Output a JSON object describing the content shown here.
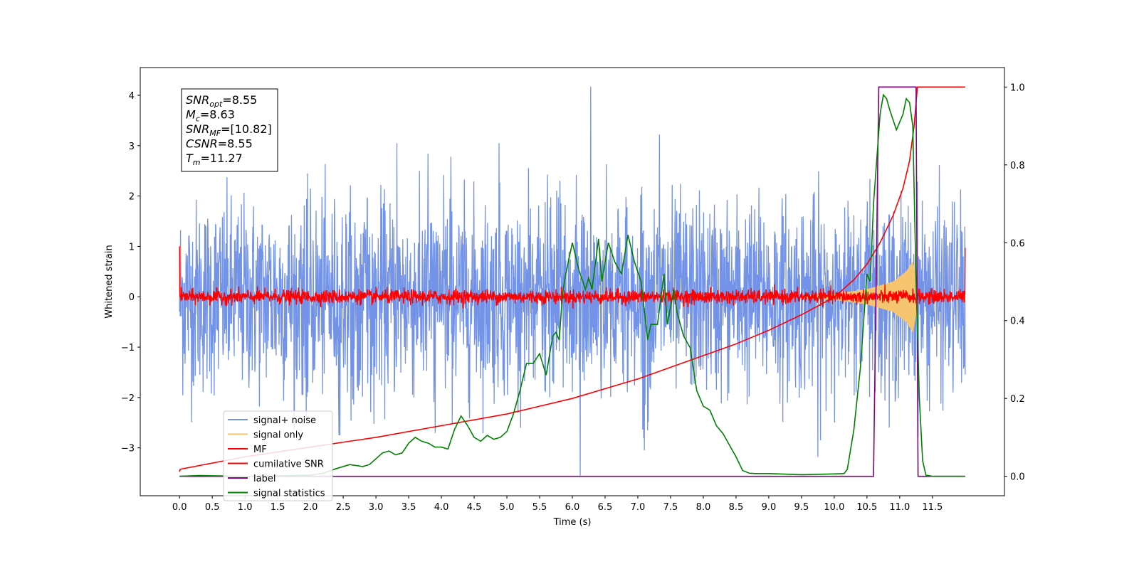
{
  "chart_data": {
    "type": "line",
    "xlabel": "Time (s)",
    "ylabel": "Whitened strain",
    "xlim": [
      -0.6,
      12.6
    ],
    "ylim": [
      -3.95,
      4.55
    ],
    "y2lim": [
      -0.05,
      1.05
    ],
    "xticks": [
      "0.0",
      "0.5",
      "1.0",
      "1.5",
      "2.0",
      "2.5",
      "3.0",
      "3.5",
      "4.0",
      "4.5",
      "5.0",
      "5.5",
      "6.0",
      "6.5",
      "7.0",
      "7.5",
      "8.0",
      "8.5",
      "9.0",
      "9.5",
      "10.0",
      "10.5",
      "11.0",
      "11.5"
    ],
    "yticks": [
      "−3",
      "−2",
      "−1",
      "0",
      "1",
      "2",
      "3",
      "4"
    ],
    "y2ticks": [
      "0.0",
      "0.2",
      "0.4",
      "0.6",
      "0.8",
      "1.0"
    ],
    "annotation": {
      "lines": [
        {
          "main": "SNR",
          "sub": "opt",
          "value": "=8.55"
        },
        {
          "main": "M",
          "sub": "c",
          "value": "=8.63"
        },
        {
          "main": "SNR",
          "sub": "MF",
          "value": "=[10.82]"
        },
        {
          "main": "CSNR",
          "sub": "",
          "value": "=8.55"
        },
        {
          "main": "T",
          "sub": "m",
          "value": "=11.27"
        }
      ]
    },
    "legend": {
      "placement": "lower-left",
      "entries": [
        {
          "label": "signal+ noise",
          "color": "#7393e8"
        },
        {
          "label": "signal only",
          "color": "#f5c56f"
        },
        {
          "label": "MF",
          "color": "#ff0000"
        },
        {
          "label": "cumilative SNR",
          "color": "#ff0000"
        },
        {
          "label": "label",
          "color": "#800080"
        },
        {
          "label": "signal statistics",
          "color": "#008000"
        }
      ]
    },
    "series": [
      {
        "name": "signal+ noise",
        "axis": "left",
        "color": "#7393e8",
        "kind": "noise",
        "x_range": [
          0,
          12.0
        ],
        "amplitude": 2.0,
        "spikes": [
          {
            "x": 6.28,
            "y": 4.17
          },
          {
            "x": 6.12,
            "y": -3.55
          },
          {
            "x": 3.32,
            "y": 3.05
          },
          {
            "x": 4.88,
            "y": 3.05
          },
          {
            "x": 7.33,
            "y": 3.22
          },
          {
            "x": 7.1,
            "y": -3.05
          },
          {
            "x": 9.75,
            "y": -3.18
          },
          {
            "x": 2.45,
            "y": -2.75
          }
        ]
      },
      {
        "name": "signal only",
        "axis": "left",
        "color": "#f5c56f",
        "kind": "chirp",
        "x_range": [
          9.5,
          11.27
        ],
        "envelope": [
          [
            9.5,
            0.02
          ],
          [
            10.0,
            0.06
          ],
          [
            10.5,
            0.15
          ],
          [
            10.9,
            0.3
          ],
          [
            11.1,
            0.5
          ],
          [
            11.2,
            0.7
          ],
          [
            11.27,
            0.2
          ]
        ]
      },
      {
        "name": "MF",
        "axis": "left",
        "color": "#ff0000",
        "kind": "noise",
        "x_range": [
          0,
          12.0
        ],
        "amplitude": 0.12,
        "edges": [
          {
            "x": 0.0,
            "y": 1.0
          },
          {
            "x": 12.0,
            "y": 0.97
          }
        ]
      },
      {
        "name": "cumilative SNR",
        "axis": "right",
        "color": "#ff0000",
        "kind": "line",
        "points": [
          [
            0.0,
            0.012
          ],
          [
            0.01,
            0.018
          ],
          [
            1.0,
            0.05
          ],
          [
            2.0,
            0.075
          ],
          [
            3.0,
            0.1
          ],
          [
            4.0,
            0.13
          ],
          [
            5.0,
            0.16
          ],
          [
            6.0,
            0.2
          ],
          [
            7.0,
            0.25
          ],
          [
            8.0,
            0.31
          ],
          [
            8.5,
            0.34
          ],
          [
            9.0,
            0.375
          ],
          [
            9.5,
            0.415
          ],
          [
            10.0,
            0.46
          ],
          [
            10.3,
            0.505
          ],
          [
            10.5,
            0.545
          ],
          [
            10.7,
            0.6
          ],
          [
            10.9,
            0.67
          ],
          [
            11.05,
            0.74
          ],
          [
            11.15,
            0.81
          ],
          [
            11.22,
            0.9
          ],
          [
            11.27,
            1.0
          ],
          [
            12.0,
            1.0
          ]
        ]
      },
      {
        "name": "label",
        "axis": "right",
        "color": "#800080",
        "kind": "line",
        "points": [
          [
            0.0,
            0.0
          ],
          [
            10.6,
            0.0
          ],
          [
            10.68,
            1.0
          ],
          [
            11.25,
            1.0
          ],
          [
            11.28,
            0.0
          ],
          [
            12.0,
            0.0
          ]
        ]
      },
      {
        "name": "signal statistics",
        "axis": "right",
        "color": "#008000",
        "kind": "line",
        "points": [
          [
            0.0,
            0.0
          ],
          [
            0.3,
            0.002
          ],
          [
            0.6,
            0.001
          ],
          [
            1.0,
            0.0
          ],
          [
            1.5,
            0.001
          ],
          [
            2.0,
            0.003
          ],
          [
            2.2,
            0.008
          ],
          [
            2.4,
            0.02
          ],
          [
            2.6,
            0.03
          ],
          [
            2.8,
            0.025
          ],
          [
            2.9,
            0.03
          ],
          [
            3.1,
            0.06
          ],
          [
            3.2,
            0.065
          ],
          [
            3.3,
            0.055
          ],
          [
            3.4,
            0.06
          ],
          [
            3.5,
            0.085
          ],
          [
            3.6,
            0.1
          ],
          [
            3.7,
            0.09
          ],
          [
            3.8,
            0.085
          ],
          [
            3.9,
            0.075
          ],
          [
            4.0,
            0.075
          ],
          [
            4.1,
            0.07
          ],
          [
            4.2,
            0.12
          ],
          [
            4.3,
            0.155
          ],
          [
            4.4,
            0.13
          ],
          [
            4.5,
            0.1
          ],
          [
            4.6,
            0.09
          ],
          [
            4.7,
            0.105
          ],
          [
            4.8,
            0.095
          ],
          [
            4.9,
            0.1
          ],
          [
            5.0,
            0.115
          ],
          [
            5.1,
            0.16
          ],
          [
            5.2,
            0.22
          ],
          [
            5.3,
            0.29
          ],
          [
            5.4,
            0.29
          ],
          [
            5.5,
            0.315
          ],
          [
            5.6,
            0.26
          ],
          [
            5.7,
            0.36
          ],
          [
            5.75,
            0.37
          ],
          [
            5.8,
            0.35
          ],
          [
            5.85,
            0.47
          ],
          [
            5.9,
            0.52
          ],
          [
            6.0,
            0.6
          ],
          [
            6.1,
            0.53
          ],
          [
            6.2,
            0.48
          ],
          [
            6.25,
            0.51
          ],
          [
            6.3,
            0.48
          ],
          [
            6.4,
            0.61
          ],
          [
            6.45,
            0.5
          ],
          [
            6.55,
            0.6
          ],
          [
            6.65,
            0.55
          ],
          [
            6.75,
            0.52
          ],
          [
            6.85,
            0.62
          ],
          [
            6.95,
            0.55
          ],
          [
            7.05,
            0.5
          ],
          [
            7.15,
            0.35
          ],
          [
            7.2,
            0.39
          ],
          [
            7.3,
            0.39
          ],
          [
            7.4,
            0.52
          ],
          [
            7.45,
            0.39
          ],
          [
            7.55,
            0.48
          ],
          [
            7.6,
            0.42
          ],
          [
            7.7,
            0.36
          ],
          [
            7.8,
            0.33
          ],
          [
            7.9,
            0.22
          ],
          [
            8.0,
            0.18
          ],
          [
            8.1,
            0.17
          ],
          [
            8.2,
            0.13
          ],
          [
            8.3,
            0.11
          ],
          [
            8.4,
            0.08
          ],
          [
            8.5,
            0.05
          ],
          [
            8.6,
            0.015
          ],
          [
            8.7,
            0.008
          ],
          [
            8.8,
            0.007
          ],
          [
            9.0,
            0.007
          ],
          [
            9.5,
            0.004
          ],
          [
            10.0,
            0.006
          ],
          [
            10.15,
            0.007
          ],
          [
            10.2,
            0.018
          ],
          [
            10.3,
            0.12
          ],
          [
            10.4,
            0.28
          ],
          [
            10.5,
            0.52
          ],
          [
            10.55,
            0.5
          ],
          [
            10.6,
            0.7
          ],
          [
            10.7,
            0.93
          ],
          [
            10.75,
            0.98
          ],
          [
            10.8,
            0.97
          ],
          [
            10.85,
            0.94
          ],
          [
            10.95,
            0.89
          ],
          [
            11.05,
            0.93
          ],
          [
            11.1,
            0.97
          ],
          [
            11.15,
            0.96
          ],
          [
            11.2,
            0.9
          ],
          [
            11.25,
            0.5
          ],
          [
            11.3,
            0.2
          ],
          [
            11.35,
            0.04
          ],
          [
            11.4,
            0.003
          ],
          [
            11.5,
            0.0
          ],
          [
            12.0,
            0.0
          ]
        ]
      }
    ]
  }
}
